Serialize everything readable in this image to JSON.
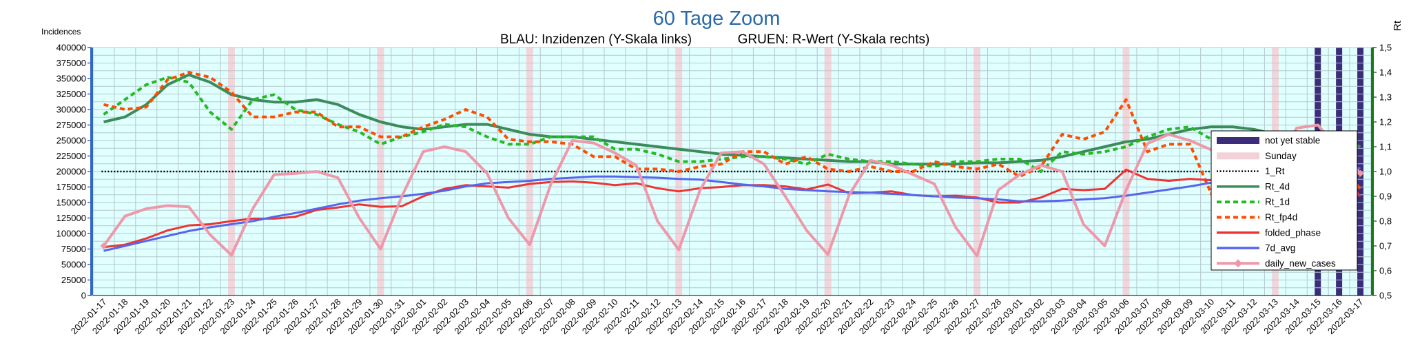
{
  "chart_data": {
    "type": "line",
    "title": "60 Tage Zoom",
    "subtitle_left": "BLAU: Inzidenzen (Y-Skala links)",
    "subtitle_right": "GRUEN: R-Wert (Y-Skala rechts)",
    "ylabel_left": "Incidences",
    "ylabel_right": "Rt",
    "ylim_left": [
      0,
      400000
    ],
    "ylim_right": [
      0.5,
      1.5
    ],
    "yticks_left": [
      "0",
      "25000",
      "50000",
      "75000",
      "100000",
      "125000",
      "150000",
      "175000",
      "200000",
      "225000",
      "250000",
      "275000",
      "300000",
      "325000",
      "350000",
      "375000",
      "400000"
    ],
    "yticks_right": [
      "0,5",
      "0,6",
      "0,7",
      "0,8",
      "0,9",
      "1,0",
      "1,1",
      "1,2",
      "1,3",
      "1,4",
      "1,5"
    ],
    "grid": true,
    "legend_position": "right",
    "x": [
      "2022-01-17",
      "2022-01-18",
      "2022-01-19",
      "2022-01-20",
      "2022-01-21",
      "2022-01-22",
      "2022-01-23",
      "2022-01-24",
      "2022-01-25",
      "2022-01-26",
      "2022-01-27",
      "2022-01-28",
      "2022-01-29",
      "2022-01-30",
      "2022-01-31",
      "2022-02-01",
      "2022-02-02",
      "2022-02-03",
      "2022-02-04",
      "2022-02-05",
      "2022-02-06",
      "2022-02-07",
      "2022-02-08",
      "2022-02-09",
      "2022-02-10",
      "2022-02-11",
      "2022-02-12",
      "2022-02-13",
      "2022-02-14",
      "2022-02-15",
      "2022-02-16",
      "2022-02-17",
      "2022-02-18",
      "2022-02-19",
      "2022-02-20",
      "2022-02-21",
      "2022-02-22",
      "2022-02-23",
      "2022-02-24",
      "2022-02-25",
      "2022-02-26",
      "2022-02-27",
      "2022-02-28",
      "2022-03-01",
      "2022-03-02",
      "2022-03-03",
      "2022-03-04",
      "2022-03-05",
      "2022-03-06",
      "2022-03-07",
      "2022-03-08",
      "2022-03-09",
      "2022-03-10",
      "2022-03-11",
      "2022-03-12",
      "2022-03-13",
      "2022-03-14",
      "2022-03-15",
      "2022-03-16",
      "2022-03-17"
    ],
    "sundays": [
      "2022-01-23",
      "2022-01-30",
      "2022-02-06",
      "2022-02-13",
      "2022-02-20",
      "2022-02-27",
      "2022-03-06",
      "2022-03-13"
    ],
    "not_yet_stable": [
      "2022-03-15",
      "2022-03-16",
      "2022-03-17"
    ],
    "reference_line": {
      "name": "1_Rt",
      "axis": "right",
      "value": 1.0,
      "color": "#000000"
    },
    "series": [
      {
        "name": "Rt_4d",
        "axis": "right",
        "color": "#3a8c5a",
        "style": "solid",
        "width": 4,
        "values": [
          1.2,
          1.22,
          1.27,
          1.35,
          1.39,
          1.36,
          1.31,
          1.29,
          1.28,
          1.28,
          1.29,
          1.27,
          1.23,
          1.2,
          1.18,
          1.17,
          1.18,
          1.19,
          1.19,
          1.17,
          1.15,
          1.14,
          1.14,
          1.13,
          1.12,
          1.11,
          1.1,
          1.09,
          1.08,
          1.07,
          1.065,
          1.06,
          1.055,
          1.05,
          1.045,
          1.04,
          1.04,
          1.03,
          1.03,
          1.03,
          1.03,
          1.035,
          1.035,
          1.04,
          1.045,
          1.06,
          1.08,
          1.1,
          1.12,
          1.13,
          1.15,
          1.17,
          1.18,
          1.18,
          1.17,
          1.15,
          1.15,
          1.14,
          1.13,
          1.1
        ]
      },
      {
        "name": "Rt_1d",
        "axis": "right",
        "color": "#22bb22",
        "style": "dash",
        "width": 4,
        "values": [
          1.23,
          1.29,
          1.35,
          1.38,
          1.36,
          1.24,
          1.17,
          1.29,
          1.31,
          1.25,
          1.23,
          1.19,
          1.16,
          1.11,
          1.14,
          1.16,
          1.19,
          1.18,
          1.14,
          1.11,
          1.11,
          1.14,
          1.14,
          1.14,
          1.09,
          1.09,
          1.07,
          1.04,
          1.04,
          1.05,
          1.06,
          1.06,
          1.05,
          1.03,
          1.07,
          1.05,
          1.04,
          1.04,
          1.03,
          1.02,
          1.04,
          1.04,
          1.05,
          1.05,
          1.0,
          1.08,
          1.07,
          1.08,
          1.1,
          1.14,
          1.17,
          1.18,
          1.13,
          1.13,
          1.09,
          1.06,
          1.09,
          1.07,
          1.02,
          0.98
        ]
      },
      {
        "name": "Rt_fp4d",
        "axis": "right",
        "color": "#ff4d00",
        "style": "dash",
        "width": 4,
        "values": [
          1.27,
          1.25,
          1.26,
          1.37,
          1.4,
          1.38,
          1.32,
          1.22,
          1.22,
          1.24,
          1.24,
          1.18,
          1.18,
          1.14,
          1.14,
          1.18,
          1.21,
          1.25,
          1.22,
          1.13,
          1.12,
          1.12,
          1.11,
          1.06,
          1.06,
          1.01,
          1.01,
          1.0,
          1.02,
          1.03,
          1.08,
          1.08,
          1.03,
          1.06,
          1.01,
          1.0,
          1.02,
          1.0,
          1.0,
          1.04,
          1.02,
          1.01,
          1.03,
          0.98,
          1.02,
          1.15,
          1.13,
          1.16,
          1.29,
          1.08,
          1.11,
          1.11,
          0.91,
          1.06,
          1.05,
          1.01,
          1.09,
          1.05,
          1.03,
          0.93
        ]
      },
      {
        "name": "folded_phase",
        "axis": "left",
        "color": "#ee3333",
        "style": "solid",
        "width": 3,
        "values": [
          78000,
          82000,
          92000,
          105000,
          113000,
          115000,
          120000,
          124000,
          124000,
          127000,
          138000,
          142000,
          147000,
          143000,
          144000,
          160000,
          172000,
          178000,
          176000,
          174000,
          180000,
          183000,
          184000,
          182000,
          178000,
          181000,
          173000,
          168000,
          173000,
          175000,
          178000,
          178000,
          176000,
          171000,
          179000,
          165000,
          166000,
          168000,
          162000,
          160000,
          161000,
          158000,
          150000,
          150000,
          158000,
          172000,
          170000,
          172000,
          203000,
          188000,
          185000,
          188000,
          186000,
          190000,
          196000,
          182000,
          205000,
          200000,
          200000,
          160000
        ]
      },
      {
        "name": "7d_avg",
        "axis": "left",
        "color": "#5566ee",
        "style": "solid",
        "width": 3,
        "values": [
          72000,
          80000,
          88000,
          96000,
          104000,
          110000,
          115000,
          120000,
          127000,
          133000,
          140000,
          147000,
          153000,
          157000,
          160000,
          164000,
          169000,
          176000,
          181000,
          183000,
          185000,
          188000,
          190000,
          192000,
          192000,
          191000,
          190000,
          188000,
          187000,
          183000,
          179000,
          176000,
          172000,
          170000,
          168000,
          167000,
          166000,
          164000,
          162000,
          160000,
          158000,
          157000,
          155000,
          152000,
          152000,
          153000,
          155000,
          157000,
          161000,
          166000,
          171000,
          176000,
          182000,
          190000,
          195000,
          198000,
          200000,
          206000,
          210000,
          205000
        ]
      },
      {
        "name": "daily_new_cases",
        "axis": "left",
        "color": "#ee99aa",
        "style": "solid",
        "width": 4,
        "marker": "diamond",
        "values": [
          80000,
          128000,
          140000,
          145000,
          143000,
          98000,
          65000,
          140000,
          195000,
          197000,
          200000,
          190000,
          125000,
          75000,
          160000,
          232000,
          240000,
          232000,
          197000,
          125000,
          82000,
          180000,
          250000,
          246000,
          230000,
          210000,
          120000,
          74000,
          170000,
          230000,
          232000,
          212000,
          160000,
          105000,
          66000,
          162000,
          218000,
          210000,
          195000,
          180000,
          110000,
          64000,
          170000,
          195000,
          210000,
          200000,
          115000,
          80000,
          170000,
          245000,
          260000,
          250000,
          235000,
          155000,
          90000,
          205000,
          270000,
          275000,
          235000,
          197000
        ]
      }
    ],
    "legend": [
      {
        "label": "not yet stable",
        "kind": "bar",
        "color": "#3b2d7a"
      },
      {
        "label": "Sunday",
        "kind": "bar",
        "color": "#f0d2d8"
      },
      {
        "label": "1_Rt",
        "kind": "dots",
        "color": "#000000"
      },
      {
        "label": "Rt_4d",
        "kind": "line",
        "color": "#3a8c5a"
      },
      {
        "label": "Rt_1d",
        "kind": "dash",
        "color": "#22bb22"
      },
      {
        "label": "Rt_fp4d",
        "kind": "dash",
        "color": "#ff4d00"
      },
      {
        "label": "folded_phase",
        "kind": "line",
        "color": "#ee3333"
      },
      {
        "label": "7d_avg",
        "kind": "line",
        "color": "#5566ee"
      },
      {
        "label": "daily_new_cases",
        "kind": "marker-line",
        "color": "#ee99aa"
      }
    ],
    "colors": {
      "plot_bg": "#e0ffff",
      "grid": "#b5c7cc",
      "left_axis": "#3366cc",
      "right_axis": "#1a7a1a",
      "title": "#2a6aa8"
    }
  }
}
